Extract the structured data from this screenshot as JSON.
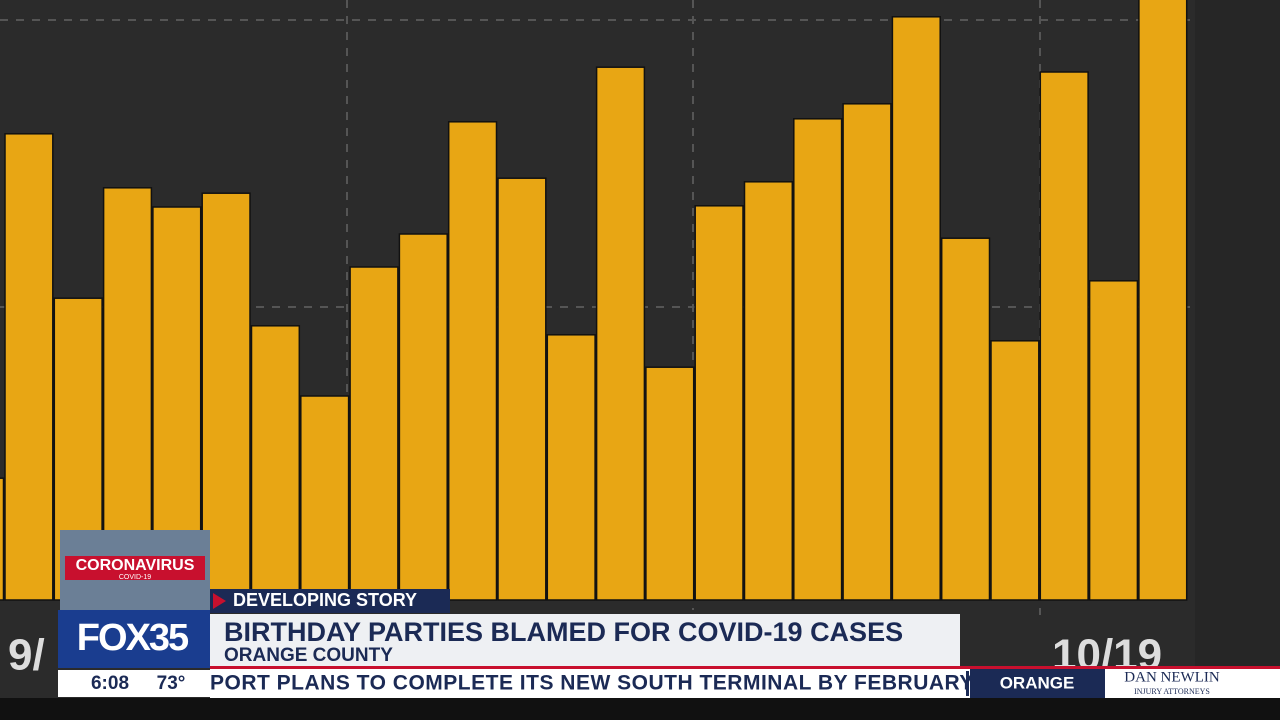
{
  "chart_data": {
    "type": "bar",
    "values": [
      20.3,
      77.7,
      50.3,
      68.7,
      65.5,
      67.8,
      45.7,
      34,
      55.5,
      61,
      79.7,
      70.3,
      44.2,
      88.8,
      38.8,
      65.7,
      69.7,
      80.2,
      82.7,
      97.2,
      60.3,
      43.2,
      88,
      53.2,
      102
    ],
    "color": "#e8a614",
    "ylim": [
      0,
      100
    ],
    "x_labels": [
      "9/",
      "10/19"
    ]
  },
  "overlay": {
    "bug_title": "CORONAVIRUS",
    "bug_sub": "COVID-19",
    "station": "FOX35",
    "time": "6:08",
    "temp": "73°",
    "tag": "DEVELOPING STORY",
    "headline": "BIRTHDAY PARTIES BLAMED FOR COVID-19 CASES",
    "subhead": "ORANGE COUNTY",
    "ticker": "PORT PLANS TO COMPLETE ITS NEW SOUTH TERMINAL BY FEBRUARY",
    "ticker_tag": "ORANGE",
    "sponsor": "DAN NEWLIN",
    "sponsor_sub": "INJURY ATTORNEYS"
  }
}
